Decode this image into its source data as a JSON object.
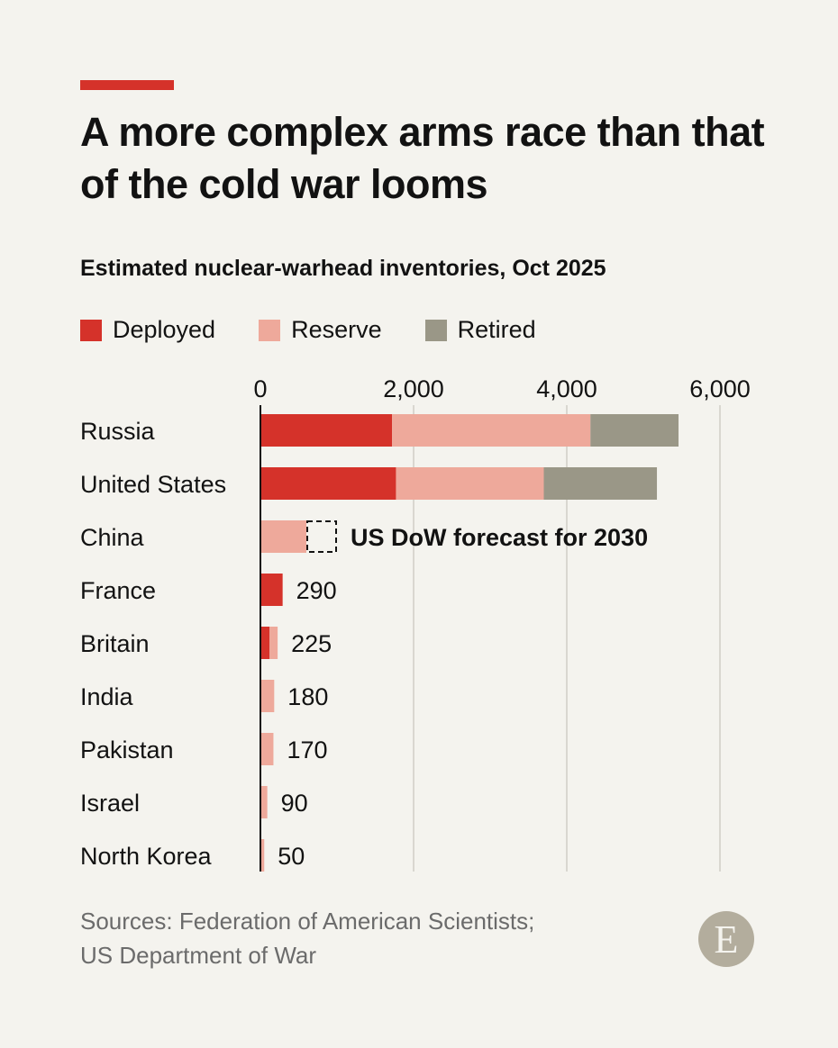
{
  "title": "A more complex arms race than that of the cold war looms",
  "subtitle": "Estimated nuclear-warhead inventories, Oct 2025",
  "source_lines": [
    "Sources: Federation of American Scientists;",
    "US Department of War"
  ],
  "logo_letter": "E",
  "colors": {
    "accent": "#d5322a",
    "deployed": "#d5322a",
    "reserve": "#eea99b",
    "retired": "#9a9787"
  },
  "chart_data": {
    "type": "bar",
    "orientation": "horizontal",
    "stacked": true,
    "categories": [
      "Russia",
      "United States",
      "China",
      "France",
      "Britain",
      "India",
      "Pakistan",
      "Israel",
      "North Korea"
    ],
    "series": [
      {
        "name": "Deployed",
        "values": [
          1718,
          1770,
          0,
          290,
          120,
          0,
          0,
          0,
          0
        ]
      },
      {
        "name": "Reserve",
        "values": [
          2591,
          1930,
          600,
          0,
          105,
          180,
          170,
          90,
          50
        ]
      },
      {
        "name": "Retired",
        "values": [
          1150,
          1477,
          0,
          0,
          0,
          0,
          0,
          0,
          0
        ]
      }
    ],
    "data_labels": [
      "",
      "",
      "",
      "290",
      "225",
      "180",
      "170",
      "90",
      "50"
    ],
    "annotation": {
      "category": "China",
      "value": 1000,
      "text": "US DoW forecast for 2030"
    },
    "xlim": [
      0,
      6000
    ],
    "xticks": [
      0,
      2000,
      4000,
      6000
    ],
    "xtick_labels": [
      "0",
      "2,000",
      "4,000",
      "6,000"
    ],
    "grid": true,
    "legend_placement": "top-left"
  }
}
